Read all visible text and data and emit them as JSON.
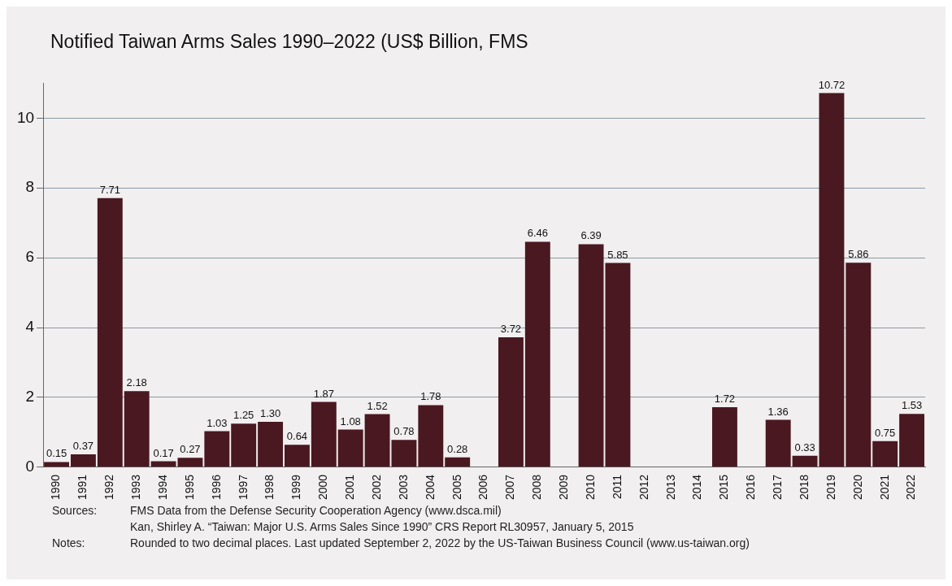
{
  "chart_data": {
    "type": "bar",
    "title": "Notified Taiwan Arms Sales 1990–2022 (US$ Billion, FMS",
    "categories": [
      "1990",
      "1991",
      "1992",
      "1993",
      "1994",
      "1995",
      "1996",
      "1997",
      "1998",
      "1999",
      "2000",
      "2001",
      "2002",
      "2003",
      "2004",
      "2005",
      "2006",
      "2007",
      "2008",
      "2009",
      "2010",
      "2011",
      "2012",
      "2013",
      "2014",
      "2015",
      "2016",
      "2017",
      "2018",
      "2019",
      "2020",
      "2021",
      "2022"
    ],
    "values": [
      0.15,
      0.37,
      7.71,
      2.18,
      0.17,
      0.27,
      1.03,
      1.25,
      1.3,
      0.64,
      1.87,
      1.08,
      1.52,
      0.78,
      1.78,
      0.28,
      null,
      3.72,
      6.46,
      null,
      6.39,
      5.85,
      null,
      null,
      null,
      1.72,
      null,
      1.36,
      0.33,
      10.72,
      5.86,
      0.75,
      1.53
    ],
    "value_labels": [
      "0.15",
      "0.37",
      "7.71",
      "2.18",
      "0.17",
      "0.27",
      "1.03",
      "1.25",
      "1.30",
      "0.64",
      "1.87",
      "1.08",
      "1.52",
      "0.78",
      "1.78",
      "0.28",
      null,
      "3.72",
      "6.46",
      null,
      "6.39",
      "5.85",
      null,
      null,
      null,
      "1.72",
      null,
      "1.36",
      "0.33",
      "10.72",
      "5.86",
      "0.75",
      "1.53"
    ],
    "color": "#4a1820",
    "ylim": [
      0,
      11
    ],
    "yticks": [
      0,
      2,
      4,
      6,
      8,
      10
    ],
    "grid": "y",
    "legend": false,
    "annotations": [
      "Sources:",
      "FMS Data from the Defense Security Cooperation Agency (www.dsca.mil)",
      "Kan, Shirley A. “Taiwan: Major U.S. Arms Sales Since 1990” CRS Report RL30957, January 5, 2015",
      "Notes:",
      "Rounded to two decimal places. Last updated September 2, 2022 by the US-Taiwan Business Council (www.us-taiwan.org)"
    ]
  }
}
